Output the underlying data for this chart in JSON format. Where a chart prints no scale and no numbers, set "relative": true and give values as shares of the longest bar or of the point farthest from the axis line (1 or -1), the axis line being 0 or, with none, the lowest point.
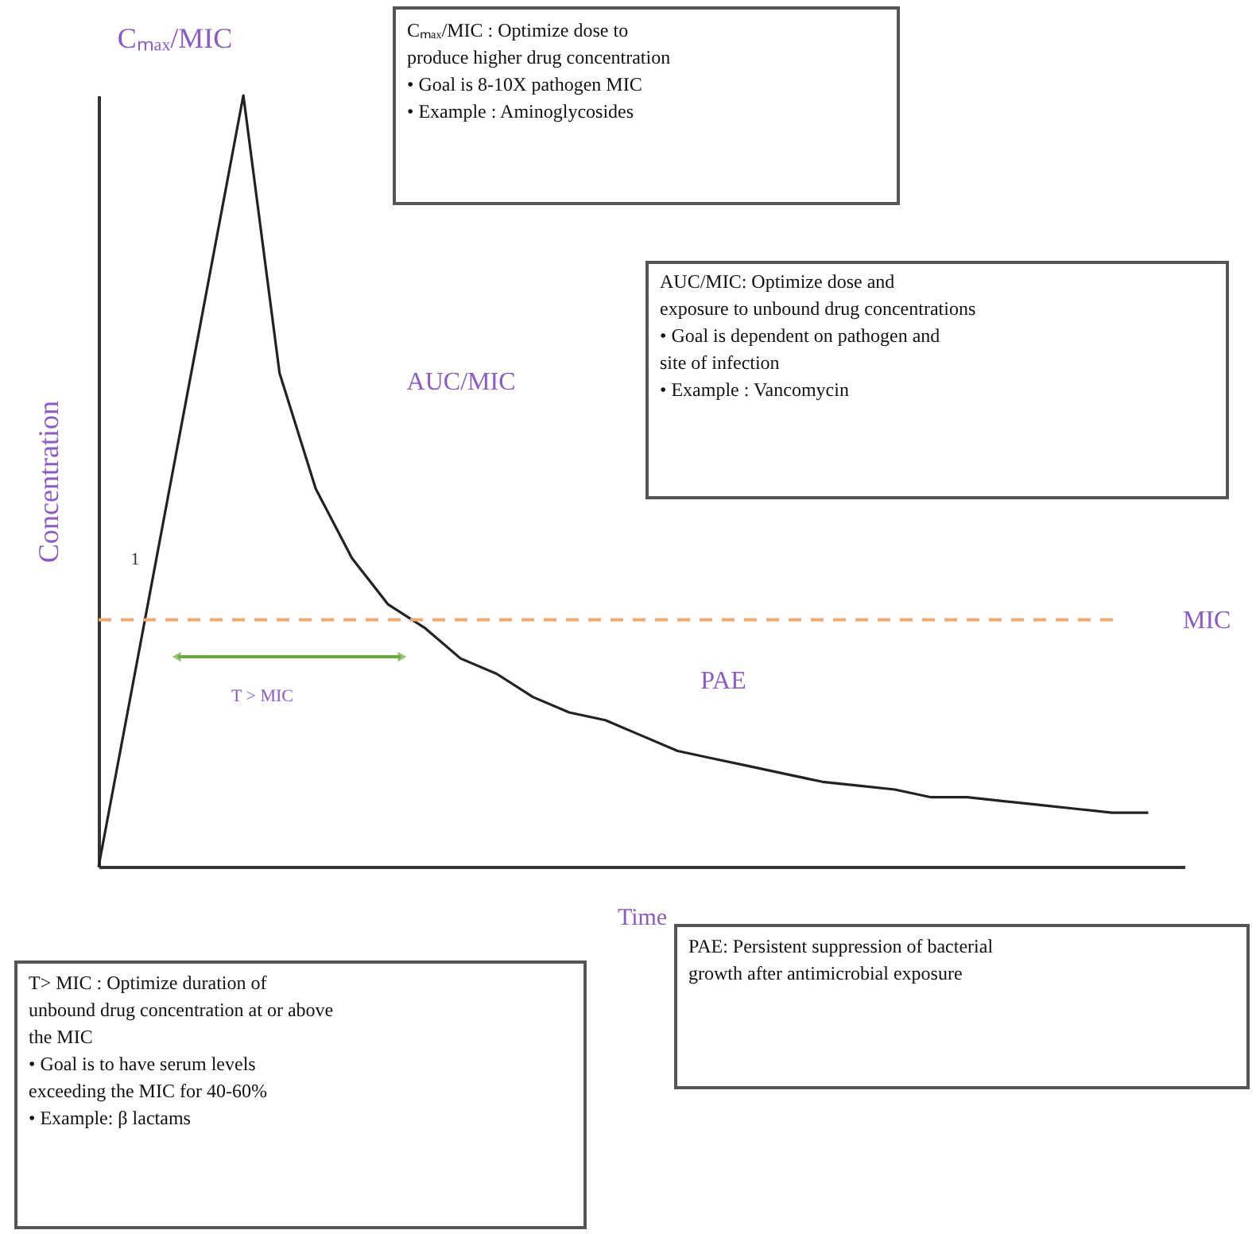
{
  "chart_data": {
    "type": "line",
    "relative": true,
    "xlabel": "Time",
    "ylabel": "Concentration",
    "tick_labels": false,
    "categories": [
      null,
      null,
      null,
      null,
      null,
      null,
      null,
      null,
      null,
      null,
      null,
      null,
      null,
      null,
      null,
      null,
      null,
      null,
      null,
      null,
      null,
      null,
      null,
      null,
      null,
      null,
      null,
      null,
      null,
      null
    ],
    "series": [
      {
        "color": "#222222",
        "values": [
          0,
          0.25,
          0.5,
          0.75,
          1,
          0.64,
          0.49,
          0.4,
          0.34,
          0.31,
          0.27,
          0.25,
          0.22,
          0.2,
          0.19,
          0.17,
          0.15,
          0.14,
          0.13,
          0.12,
          0.11,
          0.105,
          0.1,
          0.09,
          0.09,
          0.085,
          0.08,
          0.075,
          0.07,
          0.07
        ]
      }
    ],
    "ref_lines": [
      {
        "axis": "y",
        "value": 0.32,
        "label": "MIC",
        "color": "#f5a86a",
        "line_style": "dashed"
      }
    ],
    "annotations": [
      "Cₘₐₓ/MIC",
      "Cₘₐₓ/MIC : Optimize dose to\nproduce higher drug concentration\n     •  Goal is 8-10X pathogen MIC\n     •  Example : Aminoglycosides",
      "AUC/MIC",
      "AUC/MIC: Optimize dose and\nexposure to unbound drug concentrations\n     •  Goal is dependent on pathogen and\n         site of infection\n     •  Example : Vancomycin",
      "1",
      "T > MIC",
      "PAE",
      "T> MIC : Optimize duration of\nunbound drug concentration at or above\nthe MIC\n     •  Goal is to have serum levels\n         exceeding the MIC for 40-60%\n     •  Example: β lactams",
      "PAE: Persistent suppression of bacterial\ngrowth after antimicrobial exposure"
    ]
  }
}
